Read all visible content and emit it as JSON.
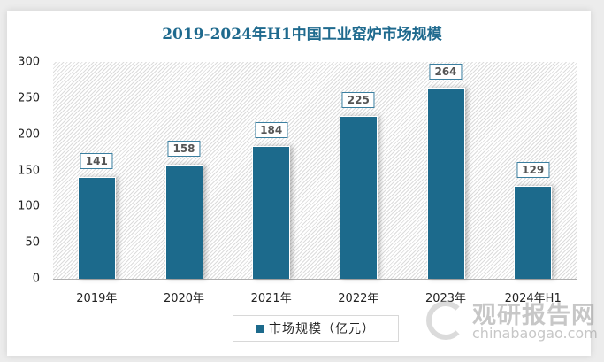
{
  "chart_data": {
    "type": "bar",
    "title": "2019-2024年H1中国工业窑炉市场规模",
    "categories": [
      "2019年",
      "2020年",
      "2021年",
      "2022年",
      "2023年",
      "2024年H1"
    ],
    "series": [
      {
        "name": "市场规模（亿元）",
        "values": [
          141,
          158,
          184,
          225,
          264,
          129
        ],
        "color": "#1c6a8c"
      }
    ],
    "data_labels": [
      "141",
      "158",
      "184",
      "225",
      "264",
      "129"
    ],
    "xlabel": "",
    "ylabel": "",
    "ylim": [
      0,
      300
    ],
    "yticks": [
      "0",
      "50",
      "100",
      "150",
      "200",
      "250",
      "300"
    ],
    "grid": false,
    "legend_position": "bottom"
  },
  "header": {
    "title": "2019-2024年H1中国工业窑炉市场规模"
  },
  "legend": {
    "label": "市场规模（亿元）"
  },
  "watermark": {
    "cn": "观研报告网",
    "en": "chinabaogao.com"
  },
  "colors": {
    "bar": "#1c6a8c",
    "title": "#1f6a8e",
    "label_border": "#3b7fa0"
  }
}
